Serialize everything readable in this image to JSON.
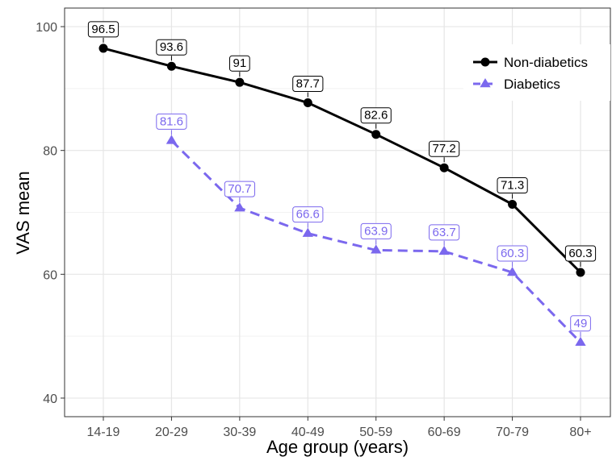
{
  "chart_data": {
    "type": "line",
    "title": "",
    "xlabel": "Age group (years)",
    "ylabel": "VAS mean",
    "categories": [
      "14-19",
      "20-29",
      "30-39",
      "40-49",
      "50-59",
      "60-69",
      "70-79",
      "80+"
    ],
    "ylim": [
      37,
      103
    ],
    "yticks": [
      40,
      60,
      80,
      100
    ],
    "grid": true,
    "legend_position": "top-right",
    "series": [
      {
        "name": "Non-diabetics",
        "values": [
          96.5,
          93.6,
          91,
          87.7,
          82.6,
          77.2,
          71.3,
          60.3
        ],
        "labels": [
          "96.5",
          "93.6",
          "91",
          "87.7",
          "82.6",
          "77.2",
          "71.3",
          "60.3"
        ],
        "color": "#000000",
        "line": "solid",
        "marker": "circle"
      },
      {
        "name": "Diabetics",
        "values": [
          null,
          81.6,
          70.7,
          66.6,
          63.9,
          63.7,
          60.3,
          49
        ],
        "labels": [
          null,
          "81.6",
          "70.7",
          "66.6",
          "63.9",
          "63.7",
          "60.3",
          "49"
        ],
        "color": "#7B68EE",
        "line": "dashed",
        "marker": "triangle"
      }
    ]
  }
}
